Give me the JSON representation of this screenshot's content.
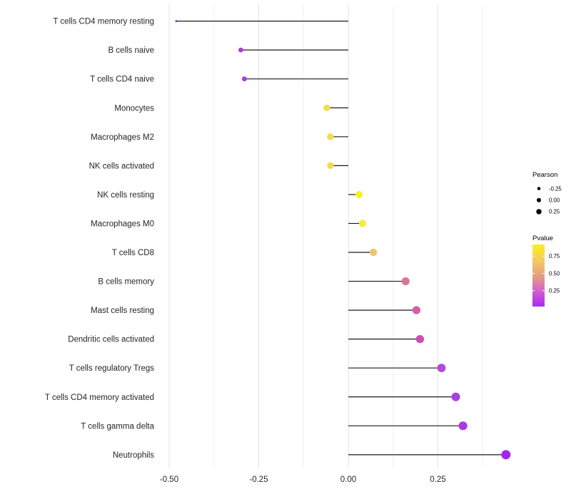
{
  "figure": {
    "background": "#FFFFFF",
    "panel_background": "#FFFFFF",
    "major_grid_color": "#E4E4E4",
    "minor_grid_color": "#F1F1F1",
    "stem_color": "#1A1A1A",
    "axis_text_color": "#262626",
    "legend_text_color": "#000000"
  },
  "chart_data": {
    "type": "scatter",
    "subtype": "horizontal-lollipop",
    "title": "",
    "xlabel": "",
    "ylabel": "",
    "x_tick_labels": [
      "-0.50",
      "-0.25",
      "0.00",
      "0.25"
    ],
    "x_tick_values": [
      -0.5,
      -0.25,
      0,
      0.25
    ],
    "x_minor_values": [
      -0.375,
      -0.125,
      0.125,
      0.375
    ],
    "xlim": [
      -0.53,
      0.482
    ],
    "baseline_x": 0,
    "grid": "vertical major + minor, light gray on white",
    "rows": [
      {
        "label": "T cells CD4 memory resting",
        "pearson": -0.48,
        "pvalue": 0.03,
        "color": "#9D2ACB"
      },
      {
        "label": "B cells naive",
        "pearson": -0.3,
        "pvalue": 0.13,
        "color": "#A83CD9"
      },
      {
        "label": "T cells CD4 naive",
        "pearson": -0.29,
        "pvalue": 0.13,
        "color": "#A83CD9"
      },
      {
        "label": "Monocytes",
        "pearson": -0.06,
        "pvalue": 0.82,
        "color": "#F4DC50"
      },
      {
        "label": "Macrophages M2",
        "pearson": -0.05,
        "pvalue": 0.8,
        "color": "#F4DB52"
      },
      {
        "label": "NK cells activated",
        "pearson": -0.05,
        "pvalue": 0.79,
        "color": "#F3DA55"
      },
      {
        "label": "NK cells resting",
        "pearson": 0.03,
        "pvalue": 0.92,
        "color": "#F9F126"
      },
      {
        "label": "Macrophages M0",
        "pearson": 0.04,
        "pvalue": 0.88,
        "color": "#F8EB3A"
      },
      {
        "label": "T cells CD8",
        "pearson": 0.07,
        "pvalue": 0.68,
        "color": "#F0C46E"
      },
      {
        "label": "B cells memory",
        "pearson": 0.16,
        "pvalue": 0.45,
        "color": "#DA7792"
      },
      {
        "label": "Mast cells resting",
        "pearson": 0.19,
        "pvalue": 0.35,
        "color": "#D261A6"
      },
      {
        "label": "Dendritic cells activated",
        "pearson": 0.2,
        "pvalue": 0.3,
        "color": "#CB4FB6"
      },
      {
        "label": "T cells regulatory  Tregs",
        "pearson": 0.26,
        "pvalue": 0.2,
        "color": "#B24CDA"
      },
      {
        "label": "T cells CD4 memory activated",
        "pearson": 0.3,
        "pvalue": 0.12,
        "color": "#AD3FE1"
      },
      {
        "label": "T cells gamma delta",
        "pearson": 0.32,
        "pvalue": 0.1,
        "color": "#A93AE4"
      },
      {
        "label": "Neutrophils",
        "pearson": 0.44,
        "pvalue": 0.04,
        "color": "#A327E9"
      }
    ],
    "legends": {
      "size": {
        "title": "Pearson",
        "dot_color": "#000000",
        "entries": [
          {
            "label": "-0.25",
            "value": -0.25
          },
          {
            "label": "0.00",
            "value": 0.0
          },
          {
            "label": "0.25",
            "value": 0.25
          }
        ]
      },
      "color": {
        "title": "Pvalue",
        "position": "right",
        "domain_top": 0.92,
        "domain_bottom": 0.02,
        "tick_labels": [
          "0.75",
          "0.50",
          "0.25"
        ],
        "tick_values": [
          0.75,
          0.5,
          0.25
        ],
        "gradient_stops": [
          {
            "offset": 0.0,
            "color": "#F9F021"
          },
          {
            "offset": 0.28,
            "color": "#F2C767"
          },
          {
            "offset": 0.5,
            "color": "#E5A17E"
          },
          {
            "offset": 0.68,
            "color": "#D873B8"
          },
          {
            "offset": 0.86,
            "color": "#C047E0"
          },
          {
            "offset": 1.0,
            "color": "#AA29F2"
          }
        ]
      }
    }
  }
}
